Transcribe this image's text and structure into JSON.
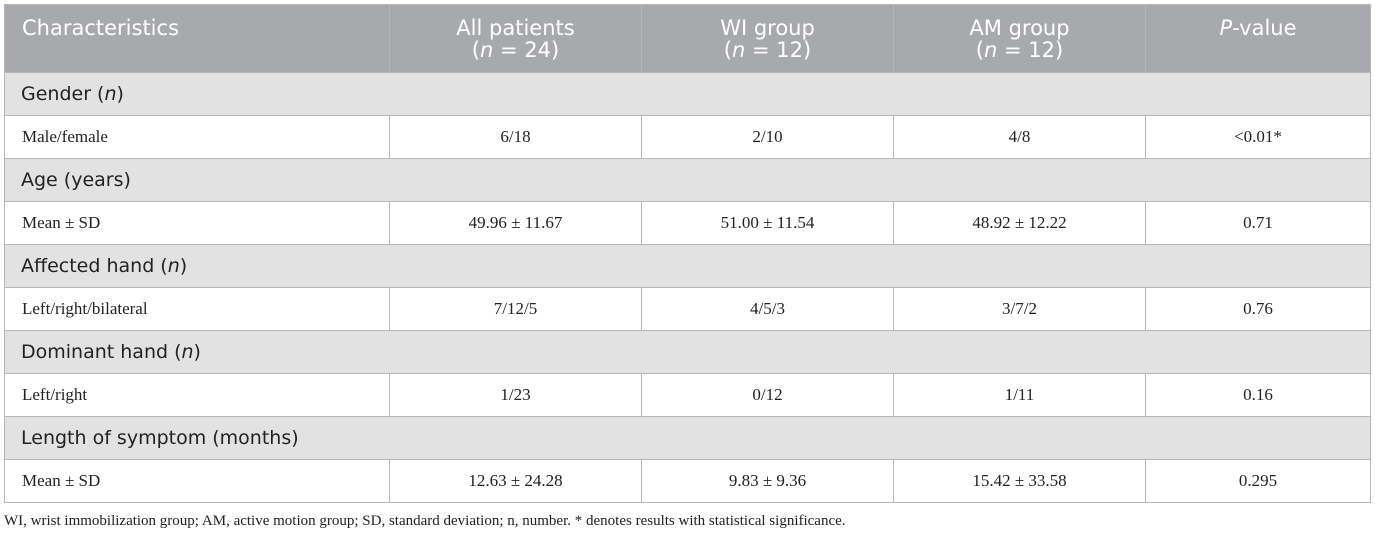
{
  "header": {
    "characteristics": "Characteristics",
    "all_patients": "All patients",
    "all_patients_n": "24",
    "wi_group": "WI group",
    "wi_group_n": "12",
    "am_group": "AM group",
    "am_group_n": "12",
    "p_label": "P",
    "p_suffix": "-value"
  },
  "sections": [
    {
      "title": "Gender (",
      "title_italic": "n",
      "title_end": ")",
      "row": {
        "label": "Male/female",
        "all": "6/18",
        "wi": "2/10",
        "am": "4/8",
        "p": "<0.01*"
      }
    },
    {
      "title": "Age (years)",
      "title_italic": "",
      "title_end": "",
      "row": {
        "label": "Mean ± SD",
        "all": "49.96 ± 11.67",
        "wi": "51.00 ± 11.54",
        "am": "48.92 ± 12.22",
        "p": "0.71"
      }
    },
    {
      "title": "Affected hand (",
      "title_italic": "n",
      "title_end": ")",
      "row": {
        "label": "Left/right/bilateral",
        "all": "7/12/5",
        "wi": "4/5/3",
        "am": "3/7/2",
        "p": "0.76"
      }
    },
    {
      "title": "Dominant hand (",
      "title_italic": "n",
      "title_end": ")",
      "row": {
        "label": "Left/right",
        "all": "1/23",
        "wi": "0/12",
        "am": "1/11",
        "p": "0.16"
      }
    },
    {
      "title": "Length of symptom (months)",
      "title_italic": "",
      "title_end": "",
      "row": {
        "label": "Mean ± SD",
        "all": "12.63 ± 24.28",
        "wi": "9.83 ± 9.36",
        "am": "15.42 ± 33.58",
        "p": "0.295"
      }
    }
  ],
  "footnote": "WI, wrist immobilization group; AM, active motion group; SD, standard deviation; n, number. * denotes results with statistical significance."
}
